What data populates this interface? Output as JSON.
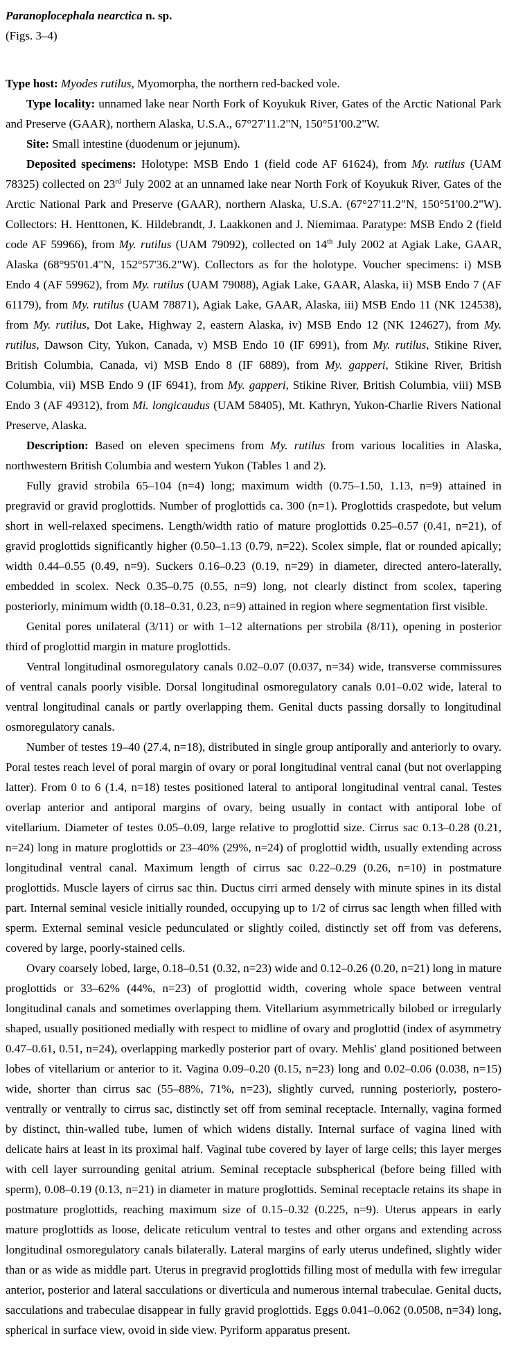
{
  "page": {
    "background_color": "#ffffff",
    "text_color": "#000000"
  },
  "title": {
    "species": "Paranoplocephala nearctica",
    "designation": "n. sp.",
    "figs": "(Figs. 3–4)"
  },
  "sections": {
    "type_host": {
      "runs": [
        {
          "t": "Type host: ",
          "s": "b"
        },
        {
          "t": "Myodes rutilus",
          "s": "i"
        },
        {
          "t": ", Myomorpha, the northern red-backed vole.",
          "s": ""
        }
      ]
    },
    "type_locality": {
      "runs": [
        {
          "t": "Type locality: ",
          "s": "b"
        },
        {
          "t": "unnamed lake near North Fork of Koyukuk River, Gates of the Arctic National Park and Preserve (GAAR), northern Alaska, U.S.A., 67°27'11.2\"N, 150°51'00.2\"W.",
          "s": ""
        }
      ]
    },
    "site": {
      "runs": [
        {
          "t": "Site: ",
          "s": "b"
        },
        {
          "t": "Small intestine (duodenum or jejunum).",
          "s": ""
        }
      ]
    },
    "deposited_specimens": {
      "runs": [
        {
          "t": "Deposited specimens: ",
          "s": "b"
        },
        {
          "t": "Holotype: MSB Endo 1 (field code AF 61624), from ",
          "s": ""
        },
        {
          "t": "My. rutilus",
          "s": "i"
        },
        {
          "t": " (UAM 78325) collected on 23",
          "s": ""
        },
        {
          "t": "rd",
          "s": "sup"
        },
        {
          "t": " July 2002 at an unnamed lake near North Fork of Koyukuk River, Gates of the Arctic National Park and Preserve (GAAR), northern Alaska, U.S.A. (67°27'11.2\"N, 150°51'00.2\"W). Collectors: H. Henttonen, K. Hildebrandt, J. Laakkonen and J. Niemimaa. Paratype: MSB Endo 2 (field code AF 59966), from ",
          "s": ""
        },
        {
          "t": "My. rutilus",
          "s": "i"
        },
        {
          "t": " (UAM 79092), collected on 14",
          "s": ""
        },
        {
          "t": "th",
          "s": "sup"
        },
        {
          "t": " July 2002 at Agiak Lake, GAAR, Alaska (68°95'01.4\"N, 152°57'36.2\"W). Collectors as for the holotype. Voucher specimens: i) MSB Endo 4 (AF 59962), from ",
          "s": ""
        },
        {
          "t": "My. rutilus",
          "s": "i"
        },
        {
          "t": " (UAM 79088), Agiak Lake, GAAR, Alaska, ii) MSB Endo 7 (AF 61179), from ",
          "s": ""
        },
        {
          "t": "My. rutilus",
          "s": "i"
        },
        {
          "t": " (UAM 78871), Agiak Lake, GAAR, Alaska, iii) MSB Endo 11 (NK 124538), from ",
          "s": ""
        },
        {
          "t": "My. rutilus",
          "s": "i"
        },
        {
          "t": ", Dot Lake, Highway 2, eastern Alaska, iv) MSB Endo 12 (NK 124627), from ",
          "s": ""
        },
        {
          "t": "My. rutilus",
          "s": "i"
        },
        {
          "t": ", Dawson City, Yukon, Canada, v) MSB Endo 10 (IF 6991), from ",
          "s": ""
        },
        {
          "t": "My. rutilus",
          "s": "i"
        },
        {
          "t": ", Stikine River, British Columbia, Canada, vi) MSB Endo 8 (IF 6889), from ",
          "s": ""
        },
        {
          "t": "My. gapperi",
          "s": "i"
        },
        {
          "t": ", Stikine River, British Columbia, vii) MSB Endo 9 (IF 6941), from ",
          "s": ""
        },
        {
          "t": "My. gapperi",
          "s": "i"
        },
        {
          "t": ", Stikine River, British Columbia, viii) MSB Endo 3 (AF 49312), from ",
          "s": ""
        },
        {
          "t": "Mi. longicaudus",
          "s": "i"
        },
        {
          "t": " (UAM 58405), Mt. Kathryn, Yukon-Charlie Rivers National Preserve, Alaska.",
          "s": ""
        }
      ]
    },
    "description_intro": {
      "runs": [
        {
          "t": "Description: ",
          "s": "b"
        },
        {
          "t": "Based on eleven specimens from ",
          "s": ""
        },
        {
          "t": "My. rutilus",
          "s": "i"
        },
        {
          "t": " from various localities in Alaska, northwestern British Columbia and western Yukon (Tables 1 and 2).",
          "s": ""
        }
      ]
    },
    "strobila": {
      "runs": [
        {
          "t": "Fully gravid strobila 65–104 (n=4) long; maximum width (0.75–1.50, 1.13, n=9) attained in pregravid or gravid proglottids. Number of proglottids ca. 300 (n=1). Proglottids craspedote, but velum short in well-relaxed specimens. Length/width ratio of mature proglottids 0.25–0.57 (0.41, n=21), of gravid proglottids significantly higher (0.50–1.13 (0.79, n=22). Scolex simple, flat or rounded apically; width 0.44–0.55 (0.49, n=9). Suckers 0.16–0.23 (0.19, n=29) in diameter, directed antero-laterally, embedded in scolex. Neck 0.35–0.75 (0.55, n=9) long, not clearly distinct from scolex, tapering posteriorly, minimum width (0.18–0.31, 0.23, n=9) attained in region where segmentation first visible.",
          "s": ""
        }
      ]
    },
    "genital_pores": {
      "runs": [
        {
          "t": "Genital pores unilateral (3/11) or with 1–12 alternations per strobila (8/11), opening in posterior third of proglottid margin in mature proglottids.",
          "s": ""
        }
      ]
    },
    "osmoregulatory_canals": {
      "runs": [
        {
          "t": "Ventral longitudinal osmoregulatory canals 0.02–0.07 (0.037, n=34) wide, transverse commissures of ventral canals poorly visible. Dorsal longitudinal osmoregulatory canals 0.01–0.02 wide, lateral to ventral longitudinal canals or partly overlapping them. Genital ducts passing dorsally to longitudinal osmoregulatory canals.",
          "s": ""
        }
      ]
    },
    "testes_cirrus": {
      "runs": [
        {
          "t": "Number of testes 19–40 (27.4, n=18), distributed in single group antiporally and anteriorly to ovary. Poral testes reach level of poral margin of ovary or poral longitudinal ventral canal (but not overlapping latter). From 0 to 6 (1.4, n=18) testes positioned lateral to antiporal longitudinal ventral canal. Testes overlap anterior and antiporal margins of ovary, being usually in contact with antiporal lobe of vitellarium. Diameter of testes 0.05–0.09, large relative to proglottid size. Cirrus sac 0.13–0.28 (0.21, n=24) long in mature proglottids or 23–40% (29%, n=24) of proglottid width, usually extending across longitudinal ventral canal. Maximum length of cirrus sac 0.22–0.29 (0.26, n=10) in postmature proglottids. Muscle layers of cirrus sac thin. Ductus cirri armed densely with minute spines in its distal part. Internal seminal vesicle initially rounded, occupying up to 1/2 of cirrus sac length when filled with sperm. External seminal vesicle pedunculated or slightly coiled, distinctly set off from vas deferens, covered by large, poorly-stained cells.",
          "s": ""
        }
      ]
    },
    "ovary_uterus": {
      "runs": [
        {
          "t": "Ovary coarsely lobed, large, 0.18–0.51 (0.32, n=23) wide and 0.12–0.26 (0.20, n=21) long in mature proglottids or 33–62% (44%, n=23) of proglottid width, covering whole space between ventral longitudinal canals and sometimes overlapping them. Vitellarium asymmetrically bilobed or irregularly shaped, usually positioned medially with respect to midline of ovary and proglottid (index of asymmetry 0.47–0.61, 0.51, n=24), overlapping markedly posterior part of ovary. Mehlis' gland positioned between lobes of vitellarium or anterior to it. Vagina 0.09–0.20 (0.15, n=23) long and 0.02–0.06 (0.038, n=15) wide, shorter than cirrus sac (55–88%, 71%, n=23), slightly curved, running posteriorly, postero-ventrally or ventrally to cirrus sac, distinctly set off from seminal receptacle. Internally, vagina formed by distinct, thin-walled tube, lumen of which widens distally. Internal surface of vagina lined with delicate hairs at least in its proximal half. Vaginal tube covered by layer of large cells; this layer merges with cell layer surrounding genital atrium. Seminal receptacle subspherical (before being filled with sperm), 0.08–0.19 (0.13, n=21) in diameter in mature proglottids. Seminal receptacle retains its shape in postmature proglottids, reaching maximum size of 0.15–0.32 (0.225, n=9). Uterus appears in early mature proglottids as loose, delicate reticulum ventral to testes and other organs and extending across longitudinal osmoregulatory canals bilaterally. Lateral margins of early uterus undefined, slightly wider than or as wide as middle part. Uterus in pregravid proglottids filling most of medulla with few irregular anterior, posterior and lateral sacculations or diverticula and numerous internal trabeculae. Genital ducts, sacculations and trabeculae disappear in fully gravid proglottids. Eggs 0.041–0.062 (0.0508, n=34) long, spherical in surface view, ovoid in side view. Pyriform apparatus present.",
          "s": ""
        }
      ]
    }
  }
}
